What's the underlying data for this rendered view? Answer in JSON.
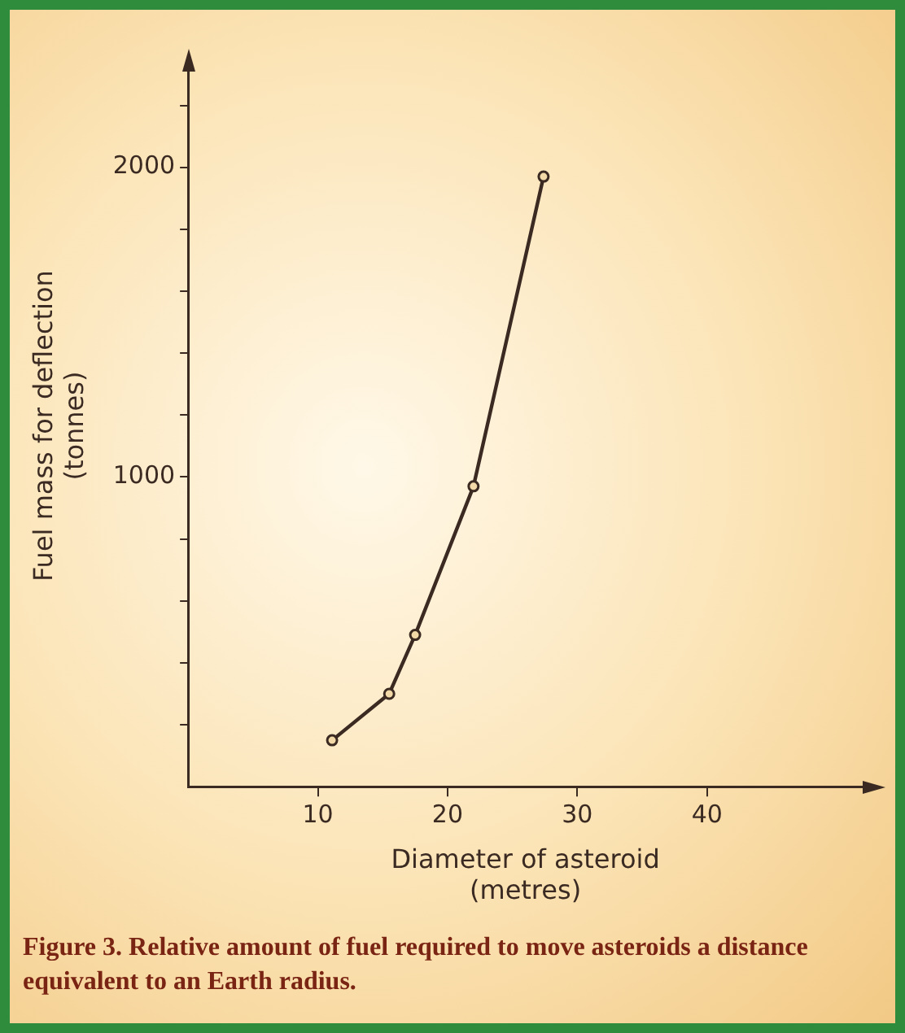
{
  "chart_data": {
    "type": "line",
    "xlabel": "Diameter of asteroid\n(metres)",
    "ylabel": "Fuel mass for deflection\n(tonnes)",
    "x": [
      11.1,
      15.5,
      17.5,
      22.0,
      27.4
    ],
    "series": [
      {
        "color": "#3a2a22",
        "values": [
          150,
          300,
          490,
          970,
          1970
        ]
      }
    ],
    "xlim": [
      0,
      52
    ],
    "xticks": [
      10,
      20,
      30,
      40
    ],
    "ylim": [
      0,
      2330
    ],
    "yticks": [
      {
        "value": 200,
        "label": null
      },
      {
        "value": 400,
        "label": null
      },
      {
        "value": 600,
        "label": null
      },
      {
        "value": 800,
        "label": null
      },
      1000,
      {
        "value": 1200,
        "label": null
      },
      {
        "value": 1400,
        "label": null
      },
      {
        "value": 1600,
        "label": null
      },
      {
        "value": 1800,
        "label": null
      },
      2000,
      {
        "value": 2200,
        "label": null
      }
    ],
    "grid": false,
    "legend": false,
    "marker": "circle",
    "line_style": "solid",
    "annotations": [
      "Figure 3. Relative amount of fuel required to move asteroids a distance equivalent to an Earth radius."
    ]
  }
}
